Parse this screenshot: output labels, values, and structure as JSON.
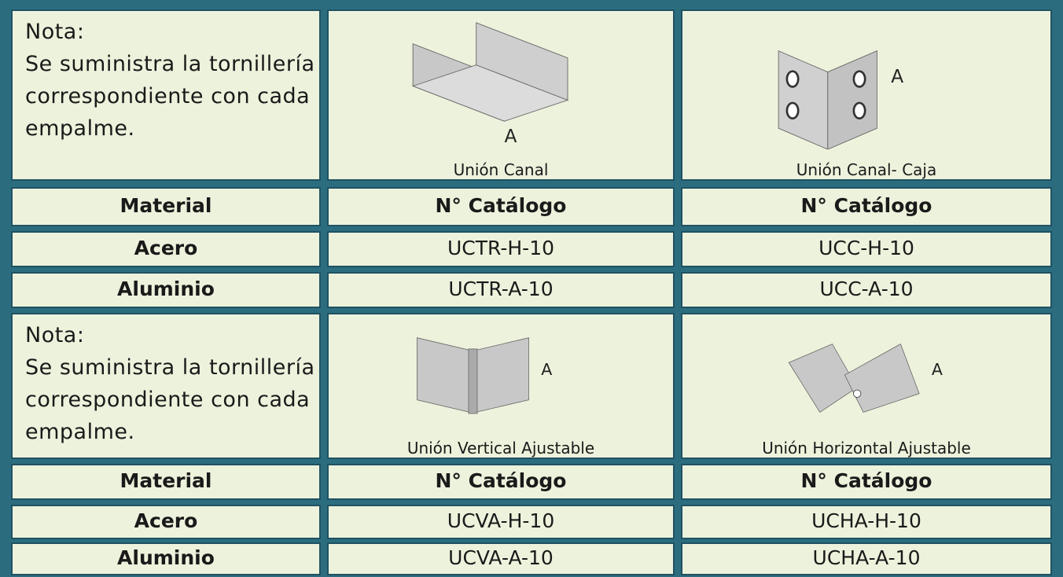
{
  "blocks": [
    {
      "note": [
        "Nota:",
        "Se suministra la tornillería",
        "correspondiente con cada",
        "empalme."
      ],
      "captions": [
        "Unión Canal",
        "Unión Canal- Caja"
      ],
      "header": [
        "Material",
        "N° Catálogo",
        "N° Catálogo"
      ],
      "rows": [
        [
          "Acero",
          "UCTR-H-10",
          "UCC-H-10"
        ],
        [
          "Aluminio",
          "UCTR-A-10",
          "UCC-A-10"
        ]
      ]
    },
    {
      "note": [
        "Nota:",
        "Se suministra la tornillería",
        "correspondiente con cada",
        "empalme."
      ],
      "captions": [
        "Unión Vertical Ajustable",
        "Unión Horizontal Ajustable"
      ],
      "header": [
        "Material",
        "N° Catálogo",
        "N° Catálogo"
      ],
      "rows": [
        [
          "Acero",
          "UCVA-H-10",
          "UCHA-H-10"
        ],
        [
          "Aluminio",
          "UCVA-A-10",
          "UCHA-A-10"
        ]
      ]
    }
  ]
}
